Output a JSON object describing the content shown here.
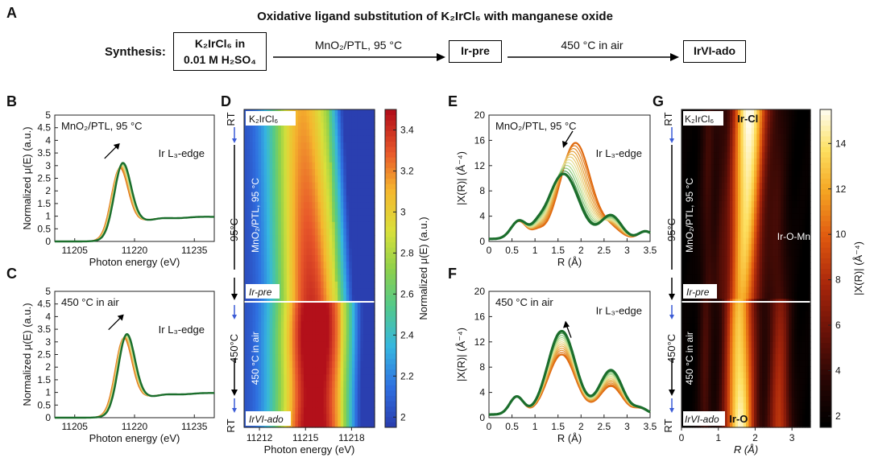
{
  "figure": {
    "title": "Oxidative ligand substitution of K₂IrCl₆ with manganese oxide",
    "synthesis": {
      "label": "Synthesis:",
      "start_line1": "K₂IrCl₆ in",
      "start_line2": "0.01 M H₂SO₄",
      "step1": "MnO₂/PTL, 95 °C",
      "mid": "Ir-pre",
      "step2": "450 °C in air",
      "end": "IrVI-ado"
    },
    "panel_letters": [
      "A",
      "B",
      "C",
      "D",
      "E",
      "F",
      "G"
    ],
    "colors": {
      "green_dark": "#1b6e2c",
      "orange": "#e06a10",
      "blue": "#2a52be",
      "arrow": "#3b5bd6"
    }
  },
  "chart_data": [
    {
      "panel": "B",
      "type": "line",
      "annotation": "MnO₂/PTL, 95 °C",
      "edge_label": "Ir L₃-edge",
      "xlabel": "Photon energy (eV)",
      "ylabel": "Normalized μ(E) (a.u.)",
      "xlim": [
        11200,
        11240
      ],
      "ylim": [
        0,
        5
      ],
      "xticks": [
        11205,
        11220,
        11235
      ],
      "yticks": [
        0,
        0.5,
        1,
        1.5,
        2,
        2.5,
        3,
        3.5,
        4,
        4.5,
        5
      ],
      "peak_start": {
        "x": 11216,
        "y": 3.05
      },
      "peak_end": {
        "x": 11216,
        "y": 3.25
      },
      "n_curves": 12
    },
    {
      "panel": "C",
      "type": "line",
      "annotation": "450 °C in air",
      "edge_label": "Ir L₃-edge",
      "xlabel": "Photon energy (eV)",
      "ylabel": "Normalized μ(E) (a.u.)",
      "xlim": [
        11200,
        11240
      ],
      "ylim": [
        0,
        5
      ],
      "xticks": [
        11205,
        11220,
        11235
      ],
      "yticks": [
        0,
        0.5,
        1,
        1.5,
        2,
        2.5,
        3,
        3.5,
        4,
        4.5,
        5
      ],
      "peak_start": {
        "x": 11217,
        "y": 3.3
      },
      "peak_end": {
        "x": 11217,
        "y": 3.45
      },
      "n_curves": 12
    },
    {
      "panel": "D",
      "type": "heatmap",
      "xlabel": "Photon energy (eV)",
      "colorbar_label": "Normalized μ(E) (a.u.)",
      "xlim": [
        11211,
        11219.5
      ],
      "xticks": [
        11212,
        11215,
        11218
      ],
      "colorbar_range": [
        1.95,
        3.5
      ],
      "colorbar_ticks": [
        2.0,
        2.2,
        2.4,
        2.6,
        2.8,
        3.0,
        3.2,
        3.4
      ],
      "row_labels": {
        "top": "K₂IrCl₆",
        "mid": "Ir-pre",
        "bottom": "IrVI-ado"
      },
      "side_labels": {
        "rt_top": "RT",
        "t1": "95°C",
        "t2": "450°C",
        "rt_bottom": "RT",
        "seg1": "MnO₂/PTL, 95 °C",
        "seg2": "450 °C in air"
      }
    },
    {
      "panel": "E",
      "type": "line",
      "annotation": "MnO₂/PTL, 95 °C",
      "edge_label": "Ir L₃-edge",
      "xlabel": "R (Å)",
      "ylabel": "|X(R)| (Å⁻⁴)",
      "xlim": [
        0,
        3.5
      ],
      "ylim": [
        0,
        20
      ],
      "xticks": [
        0.0,
        0.5,
        1.0,
        1.5,
        2.0,
        2.5,
        3.0,
        3.5
      ],
      "yticks": [
        0,
        4,
        8,
        12,
        16,
        20
      ],
      "peak_start": {
        "r": 1.88,
        "y": 15.2
      },
      "peak_end": {
        "r": 1.62,
        "y": 10.3
      },
      "n_curves": 12
    },
    {
      "panel": "F",
      "type": "line",
      "annotation": "450 °C in air",
      "edge_label": "Ir L₃-edge",
      "xlabel": "R (Å)",
      "ylabel": "|X(R)| (Å⁻⁴)",
      "xlim": [
        0,
        3.5
      ],
      "ylim": [
        0,
        20
      ],
      "xticks": [
        0.0,
        0.5,
        1.0,
        1.5,
        2.0,
        2.5,
        3.0,
        3.5
      ],
      "yticks": [
        0,
        4,
        8,
        12,
        16,
        20
      ],
      "peak_start": {
        "r": 1.58,
        "y": 9.5
      },
      "peak_end": {
        "r": 1.58,
        "y": 13.2
      },
      "n_curves": 12
    },
    {
      "panel": "G",
      "type": "heatmap",
      "xlabel": "R (Å)",
      "colorbar_label": "|X(R)| (Å⁻⁴)",
      "xlim": [
        0,
        3.5
      ],
      "xticks": [
        0,
        1,
        2,
        3
      ],
      "colorbar_range": [
        1.5,
        15.5
      ],
      "colorbar_ticks": [
        2,
        4,
        6,
        8,
        10,
        12,
        14
      ],
      "row_labels": {
        "top": "K₂IrCl₆",
        "mid": "Ir-pre",
        "bottom": "IrVI-ado"
      },
      "peak_labels": {
        "ir_cl": "Ir-Cl",
        "ir_o_mn": "Ir-O-Mn",
        "ir_o": "Ir-O"
      },
      "side_labels": {
        "rt_top": "RT",
        "t1": "95°C",
        "t2": "450°C",
        "rt_bottom": "RT",
        "seg1": "MnO₂/PTL, 95 °C",
        "seg2": "450 °C in air"
      }
    }
  ]
}
